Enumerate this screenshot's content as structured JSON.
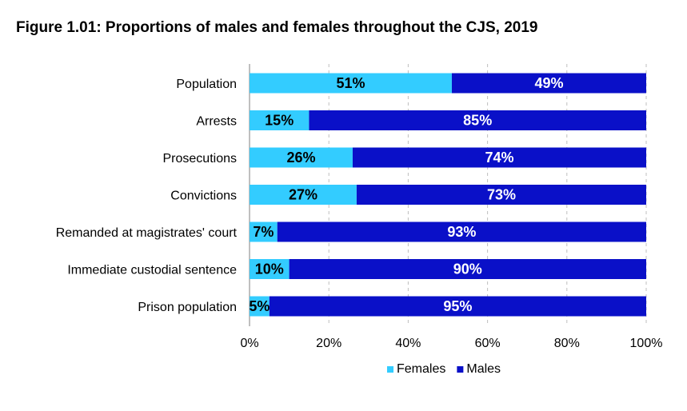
{
  "chart_data": {
    "type": "bar",
    "orientation": "horizontal",
    "stacked": true,
    "title": "Figure 1.01: Proportions of males and females throughout the CJS, 2019",
    "categories": [
      "Population",
      "Arrests",
      "Prosecutions",
      "Convictions",
      "Remanded at magistrates' court",
      "Immediate custodial sentence",
      "Prison population"
    ],
    "series": [
      {
        "name": "Females",
        "color": "#33ccff",
        "values": [
          51,
          15,
          26,
          27,
          7,
          10,
          5
        ],
        "labels": [
          "51%",
          "15%",
          "26%",
          "27%",
          "7%",
          "10%",
          "5%"
        ]
      },
      {
        "name": "Males",
        "color": "#0a10c8",
        "values": [
          49,
          85,
          74,
          73,
          93,
          90,
          95
        ],
        "labels": [
          "49%",
          "85%",
          "74%",
          "73%",
          "93%",
          "90%",
          "95%"
        ]
      }
    ],
    "xlim": [
      0,
      100
    ],
    "xticks": [
      "0%",
      "20%",
      "40%",
      "60%",
      "80%",
      "100%"
    ],
    "xtick_values": [
      0,
      20,
      40,
      60,
      80,
      100
    ],
    "grid": "vertical-dashed",
    "legend_position": "bottom"
  }
}
